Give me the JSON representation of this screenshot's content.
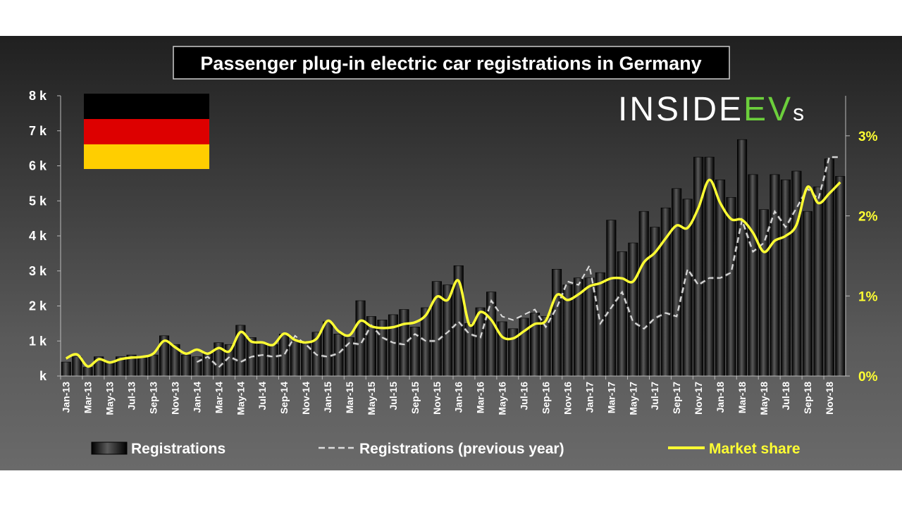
{
  "chart_data": {
    "type": "bar",
    "title": "Passenger plug-in electric car registrations in Germany",
    "brand": {
      "logo_main": "INSIDE",
      "logo_ev": "EV",
      "logo_s": "s"
    },
    "y_left": {
      "ticks": [
        0,
        1000,
        2000,
        3000,
        4000,
        5000,
        6000,
        7000,
        8000
      ],
      "tick_labels": [
        "k",
        "1 k",
        "2 k",
        "3 k",
        "4 k",
        "5 k",
        "6 k",
        "7 k",
        "8 k"
      ],
      "range": [
        0,
        8000
      ]
    },
    "y_right": {
      "ticks": [
        0,
        1,
        2,
        3
      ],
      "tick_labels": [
        "0%",
        "1%",
        "2%",
        "3%"
      ],
      "range": [
        0,
        3.5
      ]
    },
    "x_tick_labels": [
      "Jan-13",
      "Mar-13",
      "May-13",
      "Jul-13",
      "Sep-13",
      "Nov-13",
      "Jan-14",
      "Mar-14",
      "May-14",
      "Jul-14",
      "Sep-14",
      "Nov-14",
      "Jan-15",
      "Mar-15",
      "May-15",
      "Jul-15",
      "Sep-15",
      "Nov-15",
      "Jan-16",
      "Mar-16",
      "May-16",
      "Jul-16",
      "Sep-16",
      "Nov-16",
      "Jan-17",
      "Mar-17",
      "May-17",
      "Jul-17",
      "Sep-17",
      "Nov-17",
      "Jan-18",
      "Mar-18",
      "May-18",
      "Jul-18",
      "Sep-18",
      "Nov-18"
    ],
    "months": [
      "Jan-13",
      "Feb-13",
      "Mar-13",
      "Apr-13",
      "May-13",
      "Jun-13",
      "Jul-13",
      "Aug-13",
      "Sep-13",
      "Oct-13",
      "Nov-13",
      "Dec-13",
      "Jan-14",
      "Feb-14",
      "Mar-14",
      "Apr-14",
      "May-14",
      "Jun-14",
      "Jul-14",
      "Aug-14",
      "Sep-14",
      "Oct-14",
      "Nov-14",
      "Dec-14",
      "Jan-15",
      "Feb-15",
      "Mar-15",
      "Apr-15",
      "May-15",
      "Jun-15",
      "Jul-15",
      "Aug-15",
      "Sep-15",
      "Oct-15",
      "Nov-15",
      "Dec-15",
      "Jan-16",
      "Feb-16",
      "Mar-16",
      "Apr-16",
      "May-16",
      "Jun-16",
      "Jul-16",
      "Aug-16",
      "Sep-16",
      "Oct-16",
      "Nov-16",
      "Dec-16",
      "Jan-17",
      "Feb-17",
      "Mar-17",
      "Apr-17",
      "May-17",
      "Jun-17",
      "Jul-17",
      "Aug-17",
      "Sep-17",
      "Oct-17",
      "Nov-17",
      "Dec-17",
      "Jan-18",
      "Feb-18",
      "Mar-18",
      "Apr-18",
      "May-18",
      "Jun-18",
      "Jul-18",
      "Aug-18",
      "Sep-18",
      "Oct-18",
      "Nov-18",
      "Dec-18"
    ],
    "series": [
      {
        "name": "Registrations",
        "kind": "bar",
        "color": "#111111",
        "values": [
          400,
          550,
          250,
          550,
          400,
          550,
          600,
          550,
          600,
          1150,
          900,
          600,
          550,
          650,
          950,
          900,
          1450,
          1100,
          950,
          900,
          1200,
          1000,
          1000,
          1250,
          1550,
          1200,
          1100,
          2150,
          1700,
          1600,
          1750,
          1900,
          1400,
          1950,
          2700,
          2600,
          3150,
          1500,
          1950,
          2400,
          1550,
          1350,
          1650,
          1800,
          1700,
          3050,
          2600,
          2800,
          2800,
          2950,
          4450,
          3550,
          3800,
          4700,
          4250,
          4800,
          5350,
          5050,
          6250,
          6250,
          5600,
          5100,
          6750,
          5750,
          4750,
          5750,
          5600,
          5850,
          4700,
          5400,
          6200,
          5700
        ]
      },
      {
        "name": "Registrations (previous year)",
        "kind": "dashed-line",
        "color": "#dddddd",
        "values": [
          null,
          null,
          null,
          null,
          null,
          null,
          null,
          null,
          null,
          null,
          null,
          null,
          400,
          550,
          250,
          550,
          400,
          550,
          600,
          550,
          600,
          1150,
          900,
          600,
          550,
          650,
          950,
          900,
          1450,
          1100,
          950,
          900,
          1200,
          1000,
          1000,
          1250,
          1550,
          1200,
          1100,
          2150,
          1700,
          1600,
          1750,
          1900,
          1400,
          1950,
          2700,
          2600,
          3150,
          1500,
          1950,
          2400,
          1550,
          1350,
          1650,
          1800,
          1700,
          3050,
          2600,
          2800,
          2800,
          2950,
          4450,
          3550,
          3800,
          4700,
          4250,
          4800,
          5350,
          5050,
          6250,
          6250
        ]
      },
      {
        "name": "Market share",
        "kind": "line",
        "color": "#ffff33",
        "values": [
          0.22,
          0.27,
          0.12,
          0.21,
          0.17,
          0.21,
          0.23,
          0.24,
          0.28,
          0.44,
          0.36,
          0.28,
          0.33,
          0.28,
          0.35,
          0.31,
          0.55,
          0.43,
          0.42,
          0.39,
          0.53,
          0.45,
          0.42,
          0.47,
          0.69,
          0.56,
          0.51,
          0.69,
          0.62,
          0.6,
          0.61,
          0.65,
          0.67,
          0.76,
          0.99,
          0.95,
          1.19,
          0.64,
          0.8,
          0.7,
          0.49,
          0.47,
          0.56,
          0.65,
          0.69,
          1.01,
          0.95,
          1.02,
          1.12,
          1.16,
          1.22,
          1.22,
          1.18,
          1.42,
          1.54,
          1.72,
          1.88,
          1.85,
          2.1,
          2.45,
          2.16,
          1.96,
          1.95,
          1.79,
          1.55,
          1.69,
          1.75,
          1.89,
          2.36,
          2.16,
          2.28,
          2.42
        ]
      }
    ],
    "legend_position": "bottom",
    "grid": false
  }
}
